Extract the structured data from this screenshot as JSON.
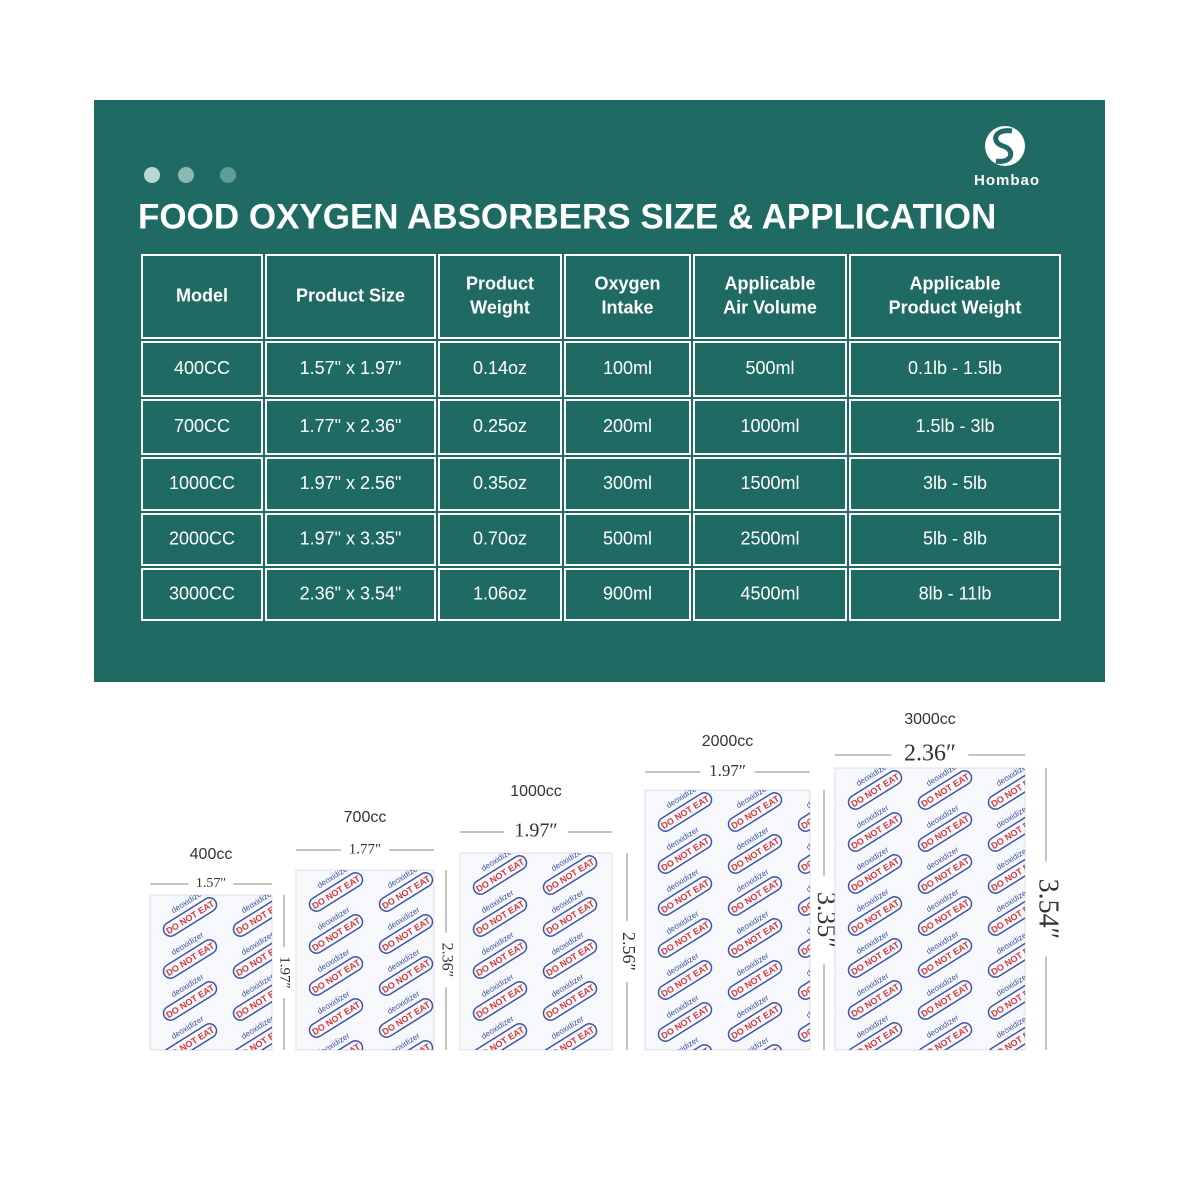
{
  "brand": "Hombao",
  "title": "FOOD OXYGEN ABSORBERS SIZE & APPLICATION",
  "table": {
    "header": [
      [
        "Model"
      ],
      [
        "Product Size"
      ],
      [
        "Product",
        "Weight"
      ],
      [
        "Oxygen",
        "Intake"
      ],
      [
        "Applicable",
        "Air Volume"
      ],
      [
        "Applicable",
        "Product Weight"
      ]
    ],
    "rows": [
      [
        "400CC",
        "1.57\" x 1.97\"",
        "0.14oz",
        "100ml",
        "500ml",
        "0.1lb - 1.5lb"
      ],
      [
        "700CC",
        "1.77\" x 2.36\"",
        "0.25oz",
        "200ml",
        "1000ml",
        "1.5lb - 3lb"
      ],
      [
        "1000CC",
        "1.97\" x 2.56\"",
        "0.35oz",
        "300ml",
        "1500ml",
        "3lb - 5lb"
      ],
      [
        "2000CC",
        "1.97\" x 3.35\"",
        "0.70oz",
        "500ml",
        "2500ml",
        "5lb - 8lb"
      ],
      [
        "3000CC",
        "2.36\" x 3.54\"",
        "1.06oz",
        "900ml",
        "4500ml",
        "8lb - 11lb"
      ]
    ]
  },
  "packets": [
    {
      "label": "400cc",
      "width": "1.57″",
      "height": "1.97″"
    },
    {
      "label": "700cc",
      "width": "1.77″",
      "height": "2.36″"
    },
    {
      "label": "1000cc",
      "width": "1.97″",
      "height": "2.56″"
    },
    {
      "label": "2000cc",
      "width": "1.97″",
      "height": "3.35″"
    },
    {
      "label": "3000cc",
      "width": "2.36″",
      "height": "3.54″"
    }
  ],
  "packet_text": {
    "brand": "deoxidizer",
    "warning": "DO NOT EAT"
  }
}
